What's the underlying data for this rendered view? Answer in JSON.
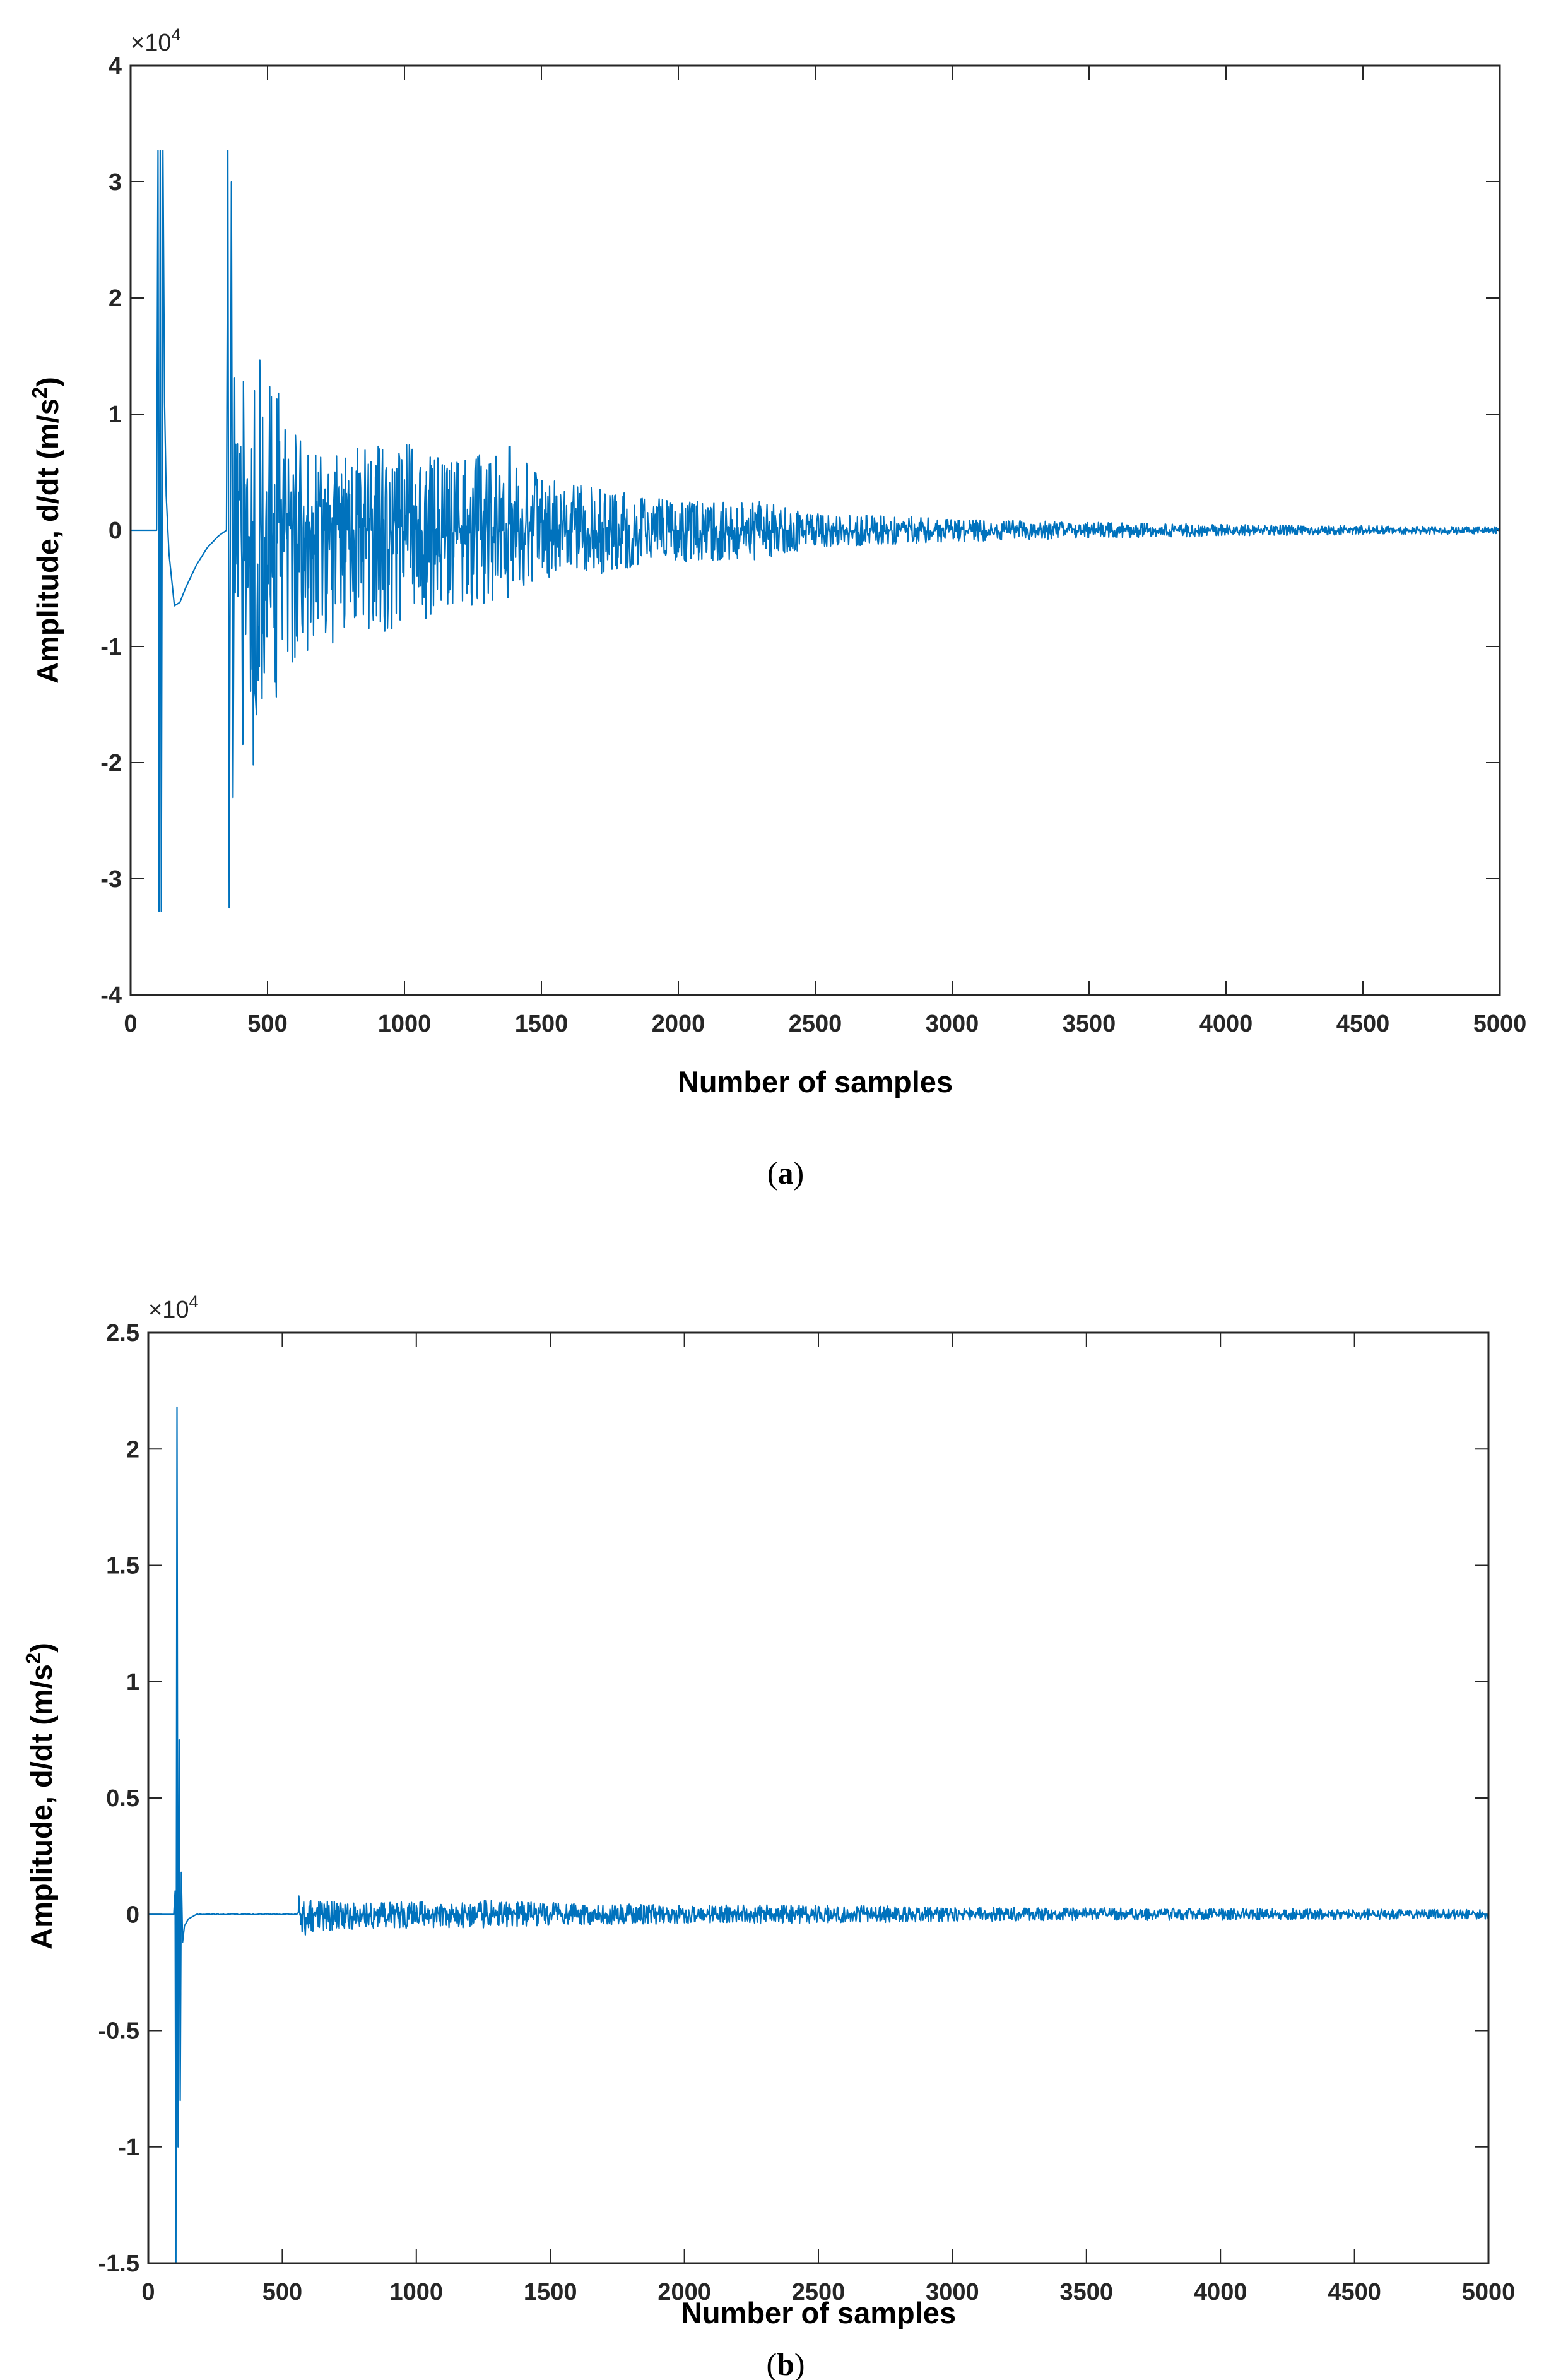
{
  "chart_data": [
    {
      "id": "a",
      "type": "line",
      "caption": {
        "open": "(",
        "letter": "a",
        "close": ")"
      },
      "xlabel": "Number of samples",
      "ylabel": {
        "main": "Amplitude, d/dt (m/s",
        "sup": "2",
        "tail": ")"
      },
      "multiplier": {
        "base": "×10",
        "exp": "4"
      },
      "xlim": [
        0,
        5000
      ],
      "ylim": [
        -4,
        4
      ],
      "xticks": [
        0,
        500,
        1000,
        1500,
        2000,
        2500,
        3000,
        3500,
        4000,
        4500,
        5000
      ],
      "yticks": [
        -4,
        -3,
        -2,
        -1,
        0,
        1,
        2,
        3,
        4
      ],
      "ytick_labels": [
        "-4",
        "-3",
        "-2",
        "-1",
        "0",
        "1",
        "2",
        "3",
        "4"
      ],
      "line_color": "#0072BD",
      "signal_outline": {
        "description_units": "x in samples, y in x10^4 m/s^2",
        "baseline": [
          [
            0,
            0.0
          ],
          [
            95,
            0.0
          ]
        ],
        "first_pulse": [
          [
            100,
            3.27
          ],
          [
            104,
            -3.28
          ],
          [
            108,
            3.27
          ],
          [
            112,
            -3.28
          ],
          [
            118,
            3.27
          ],
          [
            124,
            1.1
          ],
          [
            130,
            0.3
          ],
          [
            140,
            -0.2
          ],
          [
            160,
            -0.65
          ],
          [
            180,
            -0.62
          ],
          [
            200,
            -0.5
          ],
          [
            240,
            -0.3
          ],
          [
            280,
            -0.15
          ],
          [
            320,
            -0.05
          ],
          [
            350,
            0.0
          ]
        ],
        "second_pulse": [
          [
            355,
            3.27
          ],
          [
            360,
            -3.25
          ],
          [
            368,
            3.0
          ],
          [
            374,
            -2.3
          ]
        ],
        "envelope": [
          [
            380,
            1.7,
            -2.0
          ],
          [
            450,
            1.6,
            -2.2
          ],
          [
            500,
            1.4,
            -1.6
          ],
          [
            600,
            0.9,
            -1.1
          ],
          [
            700,
            0.8,
            -1.0
          ],
          [
            800,
            0.7,
            -0.95
          ],
          [
            1000,
            0.75,
            -0.85
          ],
          [
            1200,
            0.6,
            -0.7
          ],
          [
            1350,
            0.85,
            -0.65
          ],
          [
            1500,
            0.45,
            -0.45
          ],
          [
            1800,
            0.35,
            -0.35
          ],
          [
            2000,
            0.25,
            -0.3
          ],
          [
            2300,
            0.25,
            -0.25
          ],
          [
            2500,
            0.15,
            -0.15
          ],
          [
            3000,
            0.1,
            -0.1
          ],
          [
            3500,
            0.07,
            -0.07
          ],
          [
            4000,
            0.05,
            -0.05
          ],
          [
            5000,
            0.03,
            -0.03
          ]
        ]
      }
    },
    {
      "id": "b",
      "type": "line",
      "caption": {
        "open": "(",
        "letter": "b",
        "close": ")"
      },
      "xlabel": "Number of samples",
      "ylabel": {
        "main": "Amplitude, d/dt (m/s",
        "sup": "2",
        "tail": ")"
      },
      "multiplier": {
        "base": "×10",
        "exp": "4"
      },
      "xlim": [
        0,
        5000
      ],
      "ylim": [
        -1.5,
        2.5
      ],
      "xticks": [
        0,
        500,
        1000,
        1500,
        2000,
        2500,
        3000,
        3500,
        4000,
        4500,
        5000
      ],
      "yticks": [
        -1.5,
        -1,
        -0.5,
        0,
        0.5,
        1,
        1.5,
        2,
        2.5
      ],
      "ytick_labels": [
        "-1.5",
        "-1",
        "-0.5",
        "0",
        "0.5",
        "1",
        "1.5",
        "2",
        "2.5"
      ],
      "line_color": "#0072BD",
      "signal_outline": {
        "description_units": "x in samples, y in x10^4 m/s^2",
        "baseline": [
          [
            0,
            0.0
          ],
          [
            95,
            0.0
          ]
        ],
        "first_pulse": [
          [
            100,
            0.1
          ],
          [
            103,
            -1.5
          ],
          [
            107,
            2.18
          ],
          [
            111,
            -1.0
          ],
          [
            115,
            0.75
          ],
          [
            119,
            -0.8
          ],
          [
            123,
            0.18
          ],
          [
            128,
            -0.12
          ],
          [
            135,
            -0.05
          ],
          [
            150,
            -0.02
          ],
          [
            180,
            0.0
          ]
        ],
        "envelope": [
          [
            560,
            0.08,
            -0.12
          ],
          [
            600,
            0.06,
            -0.08
          ],
          [
            800,
            0.05,
            -0.06
          ],
          [
            1300,
            0.06,
            -0.06
          ],
          [
            1500,
            0.05,
            -0.05
          ],
          [
            2000,
            0.04,
            -0.04
          ],
          [
            2500,
            0.04,
            -0.04
          ],
          [
            3000,
            0.03,
            -0.03
          ],
          [
            4000,
            0.025,
            -0.025
          ],
          [
            5000,
            0.02,
            -0.02
          ]
        ]
      }
    }
  ]
}
